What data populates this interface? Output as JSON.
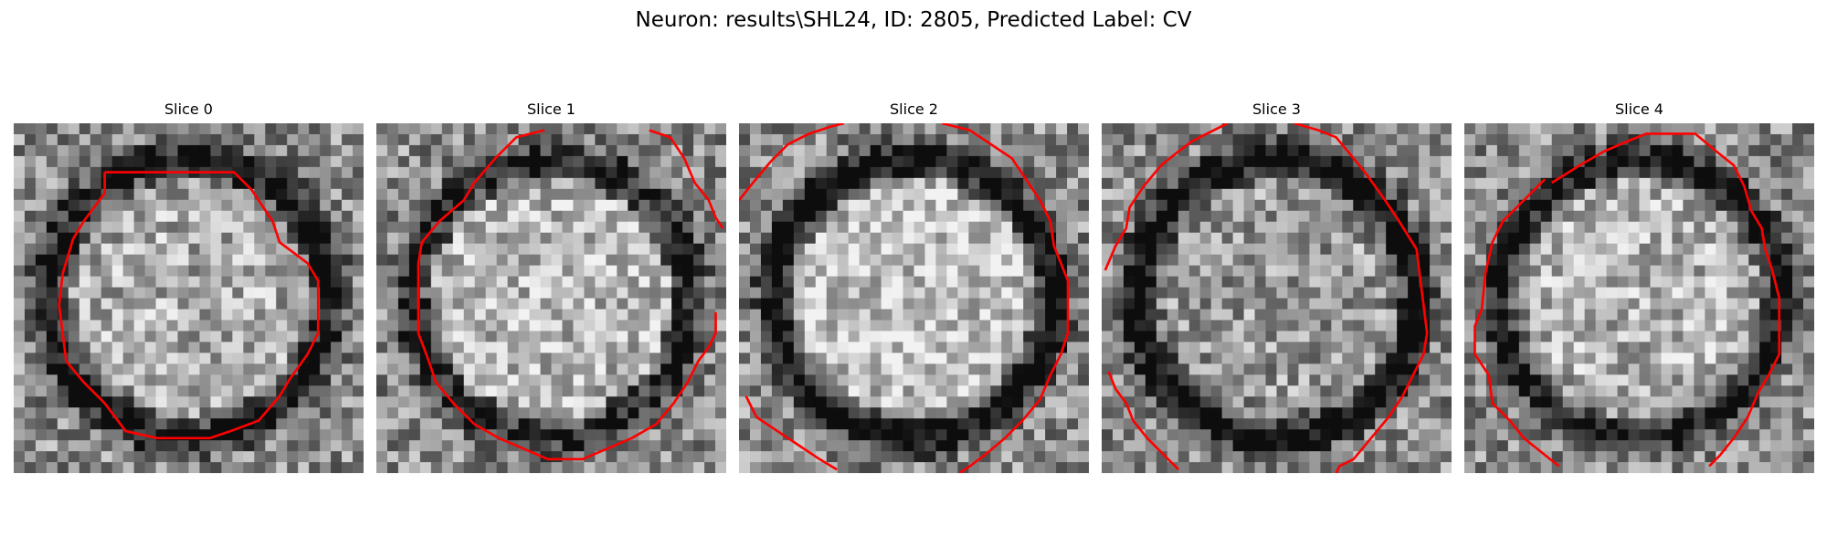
{
  "figure": {
    "title": "Neuron: results\\SHL24, ID: 2805, Predicted Label: CV",
    "contour_color": "#ff0000"
  },
  "panels": [
    {
      "title": "Slice 0",
      "seed": 11,
      "ring_strength": 0.55,
      "center_brightness": 0.12,
      "contours": [
        [
          [
            0.26,
            0.14
          ],
          [
            0.63,
            0.14
          ],
          [
            0.68,
            0.19
          ],
          [
            0.74,
            0.28
          ],
          [
            0.76,
            0.34
          ],
          [
            0.84,
            0.4
          ],
          [
            0.87,
            0.45
          ],
          [
            0.87,
            0.6
          ],
          [
            0.84,
            0.66
          ],
          [
            0.79,
            0.73
          ],
          [
            0.76,
            0.78
          ],
          [
            0.7,
            0.85
          ],
          [
            0.62,
            0.88
          ],
          [
            0.56,
            0.9
          ],
          [
            0.41,
            0.9
          ],
          [
            0.32,
            0.88
          ],
          [
            0.26,
            0.8
          ],
          [
            0.2,
            0.74
          ],
          [
            0.15,
            0.68
          ],
          [
            0.14,
            0.6
          ],
          [
            0.13,
            0.52
          ],
          [
            0.14,
            0.43
          ],
          [
            0.17,
            0.33
          ],
          [
            0.2,
            0.28
          ],
          [
            0.26,
            0.2
          ],
          [
            0.26,
            0.14
          ]
        ]
      ]
    },
    {
      "title": "Slice 1",
      "seed": 23,
      "ring_strength": 0.45,
      "center_brightness": 0.18,
      "contours": [
        [
          [
            0.48,
            0.02
          ],
          [
            0.4,
            0.04
          ],
          [
            0.34,
            0.1
          ],
          [
            0.28,
            0.17
          ],
          [
            0.25,
            0.22
          ],
          [
            0.18,
            0.28
          ],
          [
            0.13,
            0.34
          ],
          [
            0.12,
            0.4
          ],
          [
            0.12,
            0.6
          ],
          [
            0.15,
            0.68
          ],
          [
            0.17,
            0.74
          ],
          [
            0.22,
            0.8
          ],
          [
            0.28,
            0.86
          ],
          [
            0.35,
            0.9
          ],
          [
            0.42,
            0.93
          ],
          [
            0.49,
            0.96
          ],
          [
            0.59,
            0.96
          ],
          [
            0.66,
            0.93
          ],
          [
            0.73,
            0.9
          ],
          [
            0.8,
            0.86
          ],
          [
            0.85,
            0.8
          ],
          [
            0.89,
            0.74
          ],
          [
            0.92,
            0.68
          ],
          [
            0.95,
            0.64
          ],
          [
            0.97,
            0.6
          ],
          [
            0.97,
            0.54
          ]
        ],
        [
          [
            0.78,
            0.02
          ],
          [
            0.84,
            0.04
          ],
          [
            0.88,
            0.1
          ],
          [
            0.91,
            0.17
          ],
          [
            0.95,
            0.22
          ],
          [
            0.97,
            0.27
          ],
          [
            0.99,
            0.3
          ]
        ]
      ]
    },
    {
      "title": "Slice 2",
      "seed": 37,
      "ring_strength": 0.6,
      "center_brightness": 0.22,
      "contours": [
        [
          [
            0.0,
            0.22
          ],
          [
            0.04,
            0.17
          ],
          [
            0.09,
            0.11
          ],
          [
            0.14,
            0.06
          ],
          [
            0.2,
            0.03
          ],
          [
            0.26,
            0.01
          ],
          [
            0.3,
            0.0
          ]
        ],
        [
          [
            0.58,
            0.0
          ],
          [
            0.66,
            0.02
          ],
          [
            0.72,
            0.06
          ],
          [
            0.78,
            0.1
          ],
          [
            0.82,
            0.16
          ],
          [
            0.86,
            0.22
          ],
          [
            0.89,
            0.28
          ],
          [
            0.9,
            0.35
          ],
          [
            0.92,
            0.4
          ],
          [
            0.94,
            0.45
          ],
          [
            0.94,
            0.6
          ],
          [
            0.92,
            0.66
          ],
          [
            0.89,
            0.72
          ],
          [
            0.86,
            0.79
          ],
          [
            0.81,
            0.85
          ],
          [
            0.76,
            0.9
          ],
          [
            0.7,
            0.95
          ],
          [
            0.66,
            0.98
          ],
          [
            0.63,
            1.0
          ]
        ],
        [
          [
            0.02,
            0.78
          ],
          [
            0.05,
            0.84
          ],
          [
            0.11,
            0.88
          ],
          [
            0.17,
            0.92
          ],
          [
            0.23,
            0.96
          ],
          [
            0.28,
            0.99
          ]
        ]
      ]
    },
    {
      "title": "Slice 3",
      "seed": 53,
      "ring_strength": 0.62,
      "center_brightness": 0.05,
      "contours": [
        [
          [
            0.01,
            0.42
          ],
          [
            0.04,
            0.35
          ],
          [
            0.07,
            0.3
          ],
          [
            0.08,
            0.24
          ],
          [
            0.12,
            0.18
          ],
          [
            0.17,
            0.12
          ],
          [
            0.22,
            0.08
          ],
          [
            0.26,
            0.05
          ],
          [
            0.32,
            0.02
          ],
          [
            0.36,
            0.0
          ]
        ],
        [
          [
            0.55,
            0.0
          ],
          [
            0.62,
            0.02
          ],
          [
            0.67,
            0.04
          ],
          [
            0.72,
            0.1
          ],
          [
            0.76,
            0.15
          ],
          [
            0.81,
            0.22
          ],
          [
            0.85,
            0.28
          ],
          [
            0.9,
            0.36
          ],
          [
            0.91,
            0.44
          ],
          [
            0.93,
            0.6
          ],
          [
            0.92,
            0.66
          ],
          [
            0.89,
            0.72
          ],
          [
            0.86,
            0.78
          ],
          [
            0.82,
            0.84
          ],
          [
            0.77,
            0.9
          ],
          [
            0.72,
            0.96
          ],
          [
            0.68,
            0.98
          ],
          [
            0.67,
            1.0
          ]
        ],
        [
          [
            0.02,
            0.71
          ],
          [
            0.04,
            0.76
          ],
          [
            0.07,
            0.8
          ],
          [
            0.09,
            0.85
          ],
          [
            0.13,
            0.9
          ],
          [
            0.17,
            0.94
          ],
          [
            0.2,
            0.97
          ],
          [
            0.22,
            0.99
          ]
        ]
      ]
    },
    {
      "title": "Slice 4",
      "seed": 71,
      "ring_strength": 0.52,
      "center_brightness": 0.15,
      "contours": [
        [
          [
            0.25,
            0.17
          ],
          [
            0.33,
            0.12
          ],
          [
            0.4,
            0.08
          ],
          [
            0.47,
            0.05
          ],
          [
            0.52,
            0.03
          ],
          [
            0.66,
            0.03
          ],
          [
            0.72,
            0.08
          ],
          [
            0.77,
            0.12
          ],
          [
            0.8,
            0.18
          ],
          [
            0.82,
            0.25
          ],
          [
            0.85,
            0.3
          ],
          [
            0.86,
            0.36
          ],
          [
            0.88,
            0.42
          ],
          [
            0.9,
            0.5
          ],
          [
            0.9,
            0.66
          ],
          [
            0.87,
            0.72
          ],
          [
            0.84,
            0.77
          ],
          [
            0.81,
            0.84
          ],
          [
            0.77,
            0.9
          ],
          [
            0.73,
            0.95
          ],
          [
            0.7,
            0.98
          ]
        ],
        [
          [
            0.23,
            0.16
          ],
          [
            0.17,
            0.22
          ],
          [
            0.11,
            0.28
          ],
          [
            0.08,
            0.34
          ],
          [
            0.06,
            0.43
          ],
          [
            0.05,
            0.53
          ],
          [
            0.03,
            0.58
          ],
          [
            0.03,
            0.66
          ],
          [
            0.07,
            0.72
          ],
          [
            0.08,
            0.8
          ],
          [
            0.13,
            0.85
          ],
          [
            0.17,
            0.9
          ],
          [
            0.22,
            0.94
          ],
          [
            0.27,
            0.98
          ]
        ]
      ]
    }
  ]
}
